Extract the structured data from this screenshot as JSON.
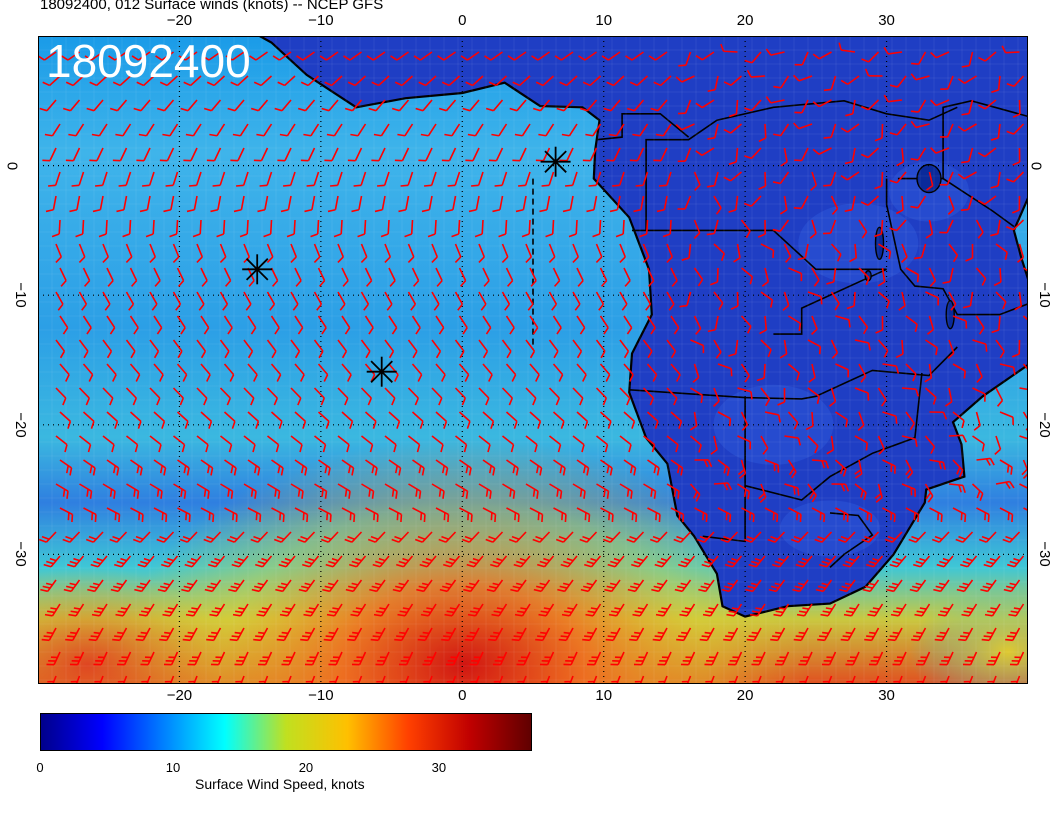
{
  "title": "18092400, 012 Surface winds (knots) -- NCEP GFS",
  "stamp": "18092400",
  "map": {
    "lon_range": [
      -30,
      40
    ],
    "lat_range": [
      -40,
      10
    ],
    "lon_ticks": [
      -20,
      -10,
      0,
      10,
      20,
      30
    ],
    "lat_ticks": [
      0,
      -10,
      -20,
      -30
    ],
    "tick_labels": {
      "lon": [
        "−20",
        "−10",
        "0",
        "10",
        "20",
        "30"
      ],
      "lat": [
        "0",
        "−10",
        "−20",
        "−30"
      ]
    },
    "grid": "dotted",
    "barb_color": "#ff0000",
    "markers": [
      {
        "lon": -14.5,
        "lat": -8
      },
      {
        "lon": -5.7,
        "lat": -15.9
      },
      {
        "lon": 6.6,
        "lat": 0.3
      }
    ]
  },
  "colorbar": {
    "label": "Surface Wind Speed, knots",
    "ticks": [
      "0",
      "10",
      "20",
      "30"
    ],
    "tick_values": [
      0,
      10,
      20,
      30
    ],
    "range": [
      0,
      37
    ],
    "colors": [
      "#00008b",
      "#0000ff",
      "#0080ff",
      "#00ffff",
      "#c0e020",
      "#ffc000",
      "#ff4000",
      "#c00000",
      "#600000"
    ]
  }
}
